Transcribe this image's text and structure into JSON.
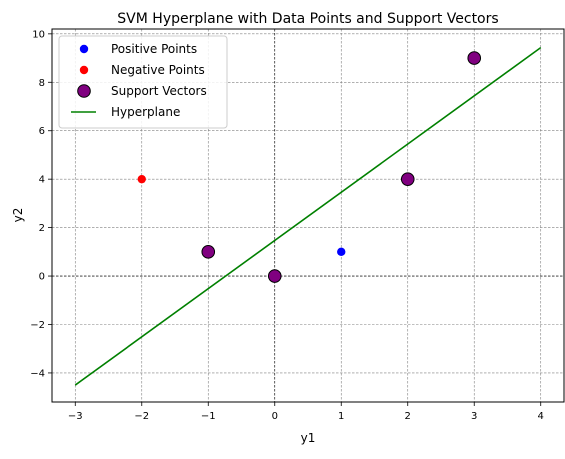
{
  "chart_data": {
    "type": "scatter",
    "title": "SVM Hyperplane with Data Points and Support Vectors",
    "xlabel": "y1",
    "ylabel": "y2",
    "xlim": [
      -3.35,
      4.35
    ],
    "ylim": [
      -5.2,
      10.2
    ],
    "xticks": [
      -3,
      -2,
      -1,
      0,
      1,
      2,
      3,
      4
    ],
    "yticks": [
      -4,
      -2,
      0,
      2,
      4,
      6,
      8,
      10
    ],
    "xtick_labels": [
      "−3",
      "−2",
      "−1",
      "0",
      "1",
      "2",
      "3",
      "4"
    ],
    "ytick_labels": [
      "−4",
      "−2",
      "0",
      "2",
      "4",
      "6",
      "8",
      "10"
    ],
    "grid": true,
    "legend_position": "top-left",
    "series": [
      {
        "name": "Positive Points",
        "kind": "points",
        "color": "#0000ff",
        "x": [
          1
        ],
        "y": [
          1
        ]
      },
      {
        "name": "Negative Points",
        "kind": "points",
        "color": "#ff0000",
        "x": [
          -2
        ],
        "y": [
          4
        ]
      },
      {
        "name": "Support Vectors",
        "kind": "support",
        "color": "#800080",
        "edgecolor": "#000000",
        "x": [
          -1,
          0,
          2,
          3
        ],
        "y": [
          1,
          0,
          4,
          9
        ]
      },
      {
        "name": "Hyperplane",
        "kind": "line",
        "color": "#008000",
        "x": [
          -3,
          4
        ],
        "y": [
          -4.5,
          9.43
        ]
      }
    ]
  }
}
